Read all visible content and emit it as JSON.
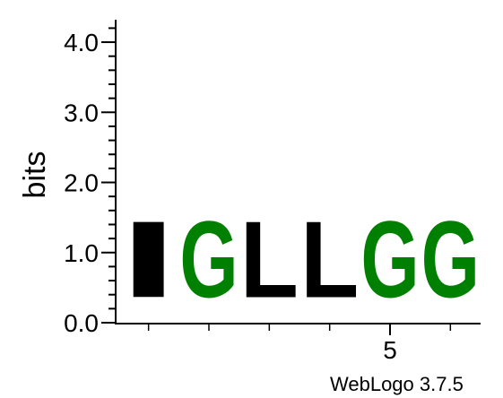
{
  "chart_data": {
    "type": "sequence-logo",
    "ylabel": "bits",
    "ylim": [
      0,
      4.32
    ],
    "yticks": [
      "0.0",
      "1.0",
      "2.0",
      "3.0",
      "4.0"
    ],
    "xtick_labels": [
      {
        "position": 5,
        "label": "5"
      }
    ],
    "positions": [
      1,
      2,
      3,
      4,
      5,
      6
    ],
    "letters": [
      {
        "position": 1,
        "letter": "I",
        "bits": 1.74,
        "color": "#000000"
      },
      {
        "position": 2,
        "letter": "G",
        "bits": 1.74,
        "color": "#008000"
      },
      {
        "position": 3,
        "letter": "L",
        "bits": 1.74,
        "color": "#000000"
      },
      {
        "position": 4,
        "letter": "L",
        "bits": 1.74,
        "color": "#000000"
      },
      {
        "position": 5,
        "letter": "G",
        "bits": 1.74,
        "color": "#008000"
      },
      {
        "position": 6,
        "letter": "G",
        "bits": 1.74,
        "color": "#008000"
      }
    ]
  },
  "footer": {
    "credit": "WebLogo 3.7.5"
  }
}
